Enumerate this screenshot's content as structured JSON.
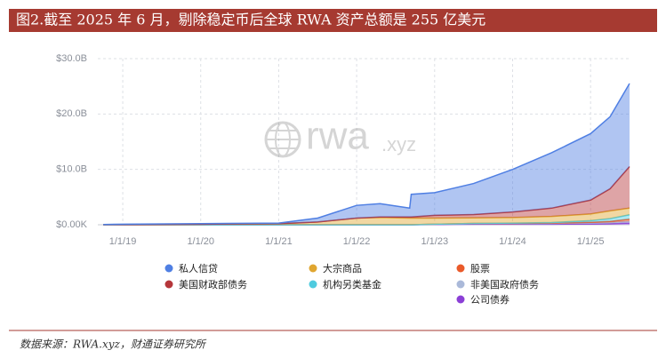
{
  "chart_data": {
    "type": "stacked_area",
    "title": "图2.截至 2025 年 6 月，剔除稳定币后全球 RWA 资产总额是 255 亿美元",
    "source": "数据来源：RWA.xyz，财通证券研究所",
    "watermark": [
      "rwa",
      ".xyz"
    ],
    "x": [
      2018.75,
      2019,
      2020,
      2021,
      2021.5,
      2022,
      2022.3,
      2022.68,
      2022.7,
      2023,
      2023.5,
      2024,
      2024.5,
      2025,
      2025.25,
      2025.5
    ],
    "xlim": [
      2018.68,
      2025.5
    ],
    "xticks": [
      {
        "value": 2019,
        "label": "1/1/19"
      },
      {
        "value": 2020,
        "label": "1/1/20"
      },
      {
        "value": 2021,
        "label": "1/1/21"
      },
      {
        "value": 2022,
        "label": "1/1/22"
      },
      {
        "value": 2023,
        "label": "1/1/23"
      },
      {
        "value": 2024,
        "label": "1/1/24"
      },
      {
        "value": 2025,
        "label": "1/1/25"
      }
    ],
    "ylim": [
      0,
      30
    ],
    "yticks": [
      {
        "value": 0,
        "label": "$0.00K"
      },
      {
        "value": 10,
        "label": "$10.0B"
      },
      {
        "value": 20,
        "label": "$20.0B"
      },
      {
        "value": 30,
        "label": "$30.0B"
      }
    ],
    "grid": true,
    "series": [
      {
        "name": "私人信贷",
        "color": "#4f7fe3",
        "values": [
          0.03,
          0.05,
          0.1,
          0.1,
          0.7,
          2.3,
          2.4,
          1.6,
          4.1,
          4.1,
          5.6,
          7.7,
          10.0,
          12.0,
          13.0,
          15.0
        ]
      },
      {
        "name": "大宗商品",
        "color": "#e0a630",
        "values": [
          0.02,
          0.05,
          0.1,
          0.2,
          0.5,
          1.2,
          1.3,
          1.2,
          1.2,
          1.1,
          1.0,
          1.0,
          1.1,
          1.2,
          1.4,
          1.2
        ]
      },
      {
        "name": "股票",
        "color": "#ea5a2a",
        "values": [
          0,
          0,
          0,
          0,
          0,
          0,
          0,
          0,
          0,
          0,
          0.05,
          0.05,
          0.05,
          0.1,
          0.2,
          0.4
        ]
      },
      {
        "name": "美国财政部债务",
        "color": "#b5363a",
        "values": [
          0,
          0,
          0,
          0,
          0,
          0,
          0.1,
          0.2,
          0.2,
          0.5,
          0.6,
          1.0,
          1.5,
          2.5,
          4.0,
          7.5
        ]
      },
      {
        "name": "机构另类基金",
        "color": "#4fcbdf",
        "values": [
          0,
          0,
          0,
          0,
          0,
          0,
          0,
          0,
          0,
          0,
          0,
          0.05,
          0.1,
          0.3,
          0.5,
          0.8
        ]
      },
      {
        "name": "非美国政府债务",
        "color": "#aab9d9",
        "values": [
          0,
          0,
          0,
          0,
          0,
          0,
          0,
          0,
          0,
          0.05,
          0.1,
          0.1,
          0.15,
          0.2,
          0.2,
          0.3
        ]
      },
      {
        "name": "公司债券",
        "color": "#8b3fd6",
        "values": [
          0,
          0,
          0,
          0,
          0,
          0,
          0,
          0,
          0,
          0.05,
          0.1,
          0.1,
          0.1,
          0.15,
          0.2,
          0.3
        ]
      }
    ]
  }
}
